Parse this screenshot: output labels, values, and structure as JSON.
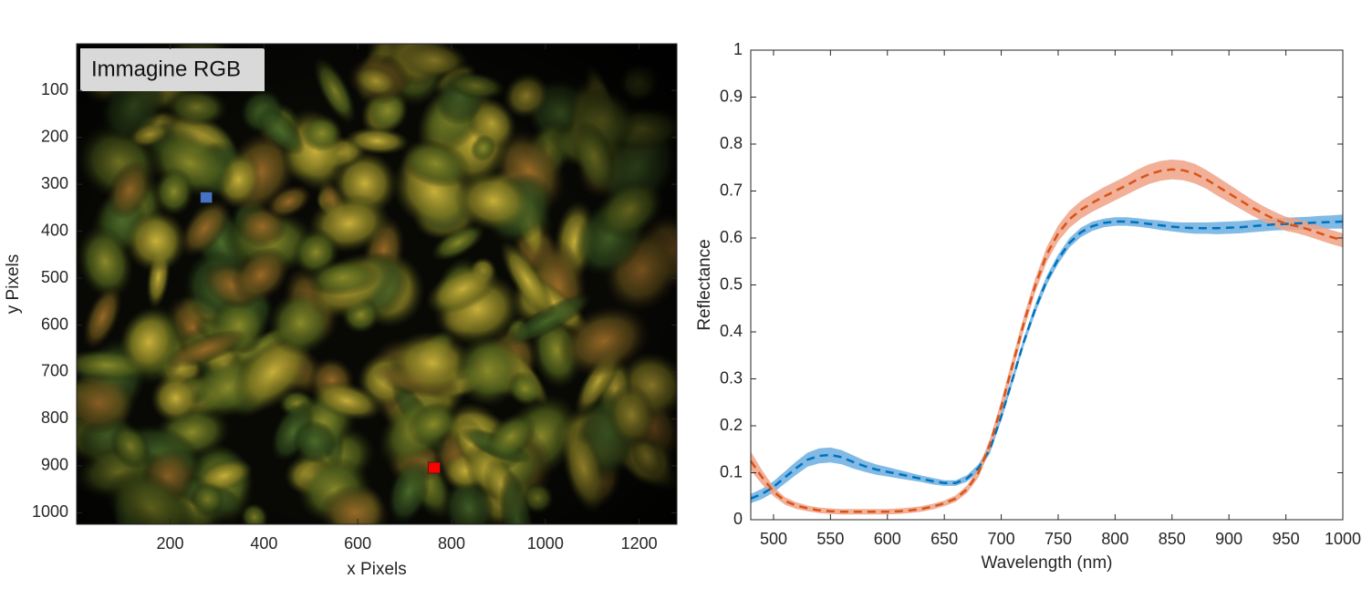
{
  "chart_data": [
    {
      "type": "image",
      "label": "Immagine RGB",
      "x_label": "x Pixels",
      "y_label": "y Pixels",
      "xlim": [
        0.5,
        1280.5
      ],
      "ylim": [
        0.5,
        1024.5
      ],
      "y_reversed": true,
      "xticks": [
        200,
        400,
        600,
        800,
        1000,
        1200
      ],
      "yticks": [
        100,
        200,
        300,
        400,
        500,
        600,
        700,
        800,
        900,
        1000
      ],
      "markers": [
        {
          "x": 276,
          "y": 328,
          "color": "#4472c4"
        },
        {
          "x": 762,
          "y": 904,
          "color": "#ff0000"
        }
      ]
    },
    {
      "type": "line",
      "x_label": "Wavelength (nm)",
      "y_label": "Reflectance",
      "xlim": [
        480,
        1000
      ],
      "ylim": [
        0,
        1
      ],
      "xticks": [
        500,
        550,
        600,
        650,
        700,
        750,
        800,
        850,
        900,
        950,
        1000
      ],
      "yticks": [
        0,
        0.1,
        0.2,
        0.3,
        0.4,
        0.5,
        0.6,
        0.7,
        0.8,
        0.9,
        1
      ],
      "grid": false,
      "dashed": true,
      "x": [
        480,
        490,
        500,
        510,
        520,
        530,
        540,
        550,
        560,
        570,
        580,
        590,
        600,
        610,
        620,
        630,
        640,
        650,
        660,
        670,
        680,
        690,
        700,
        710,
        720,
        730,
        740,
        750,
        760,
        770,
        780,
        790,
        800,
        810,
        820,
        830,
        840,
        850,
        860,
        870,
        880,
        890,
        900,
        910,
        920,
        930,
        940,
        950,
        960,
        970,
        980,
        990,
        1000
      ],
      "series": [
        {
          "color": "#0072bd",
          "band_color": "#6aaee0",
          "values": [
            0.045,
            0.055,
            0.07,
            0.09,
            0.11,
            0.128,
            0.136,
            0.138,
            0.133,
            0.123,
            0.114,
            0.107,
            0.102,
            0.097,
            0.092,
            0.087,
            0.082,
            0.078,
            0.078,
            0.088,
            0.11,
            0.15,
            0.22,
            0.3,
            0.38,
            0.45,
            0.51,
            0.555,
            0.59,
            0.612,
            0.625,
            0.632,
            0.635,
            0.635,
            0.633,
            0.63,
            0.627,
            0.624,
            0.622,
            0.621,
            0.621,
            0.621,
            0.622,
            0.623,
            0.625,
            0.627,
            0.629,
            0.63,
            0.631,
            0.632,
            0.633,
            0.634,
            0.635
          ],
          "band": [
            0.01,
            0.011,
            0.012,
            0.013,
            0.014,
            0.015,
            0.016,
            0.016,
            0.015,
            0.014,
            0.012,
            0.011,
            0.01,
            0.009,
            0.008,
            0.007,
            0.007,
            0.006,
            0.006,
            0.007,
            0.008,
            0.009,
            0.009,
            0.009,
            0.009,
            0.01,
            0.01,
            0.01,
            0.01,
            0.01,
            0.01,
            0.009,
            0.009,
            0.009,
            0.009,
            0.009,
            0.01,
            0.01,
            0.011,
            0.012,
            0.012,
            0.013,
            0.013,
            0.013,
            0.013,
            0.013,
            0.013,
            0.013,
            0.013,
            0.013,
            0.014,
            0.014,
            0.015
          ]
        },
        {
          "color": "#d95319",
          "band_color": "#eea285",
          "values": [
            0.125,
            0.09,
            0.06,
            0.04,
            0.03,
            0.024,
            0.02,
            0.018,
            0.017,
            0.017,
            0.017,
            0.017,
            0.017,
            0.018,
            0.02,
            0.023,
            0.028,
            0.035,
            0.045,
            0.065,
            0.1,
            0.16,
            0.24,
            0.33,
            0.42,
            0.5,
            0.565,
            0.61,
            0.64,
            0.66,
            0.675,
            0.688,
            0.7,
            0.712,
            0.725,
            0.736,
            0.743,
            0.746,
            0.744,
            0.737,
            0.725,
            0.71,
            0.695,
            0.68,
            0.665,
            0.652,
            0.64,
            0.63,
            0.625,
            0.618,
            0.61,
            0.602,
            0.595
          ],
          "band": [
            0.02,
            0.015,
            0.01,
            0.008,
            0.007,
            0.006,
            0.006,
            0.006,
            0.006,
            0.006,
            0.006,
            0.006,
            0.006,
            0.006,
            0.006,
            0.006,
            0.006,
            0.006,
            0.007,
            0.008,
            0.01,
            0.012,
            0.014,
            0.015,
            0.015,
            0.015,
            0.016,
            0.017,
            0.018,
            0.019,
            0.019,
            0.02,
            0.02,
            0.02,
            0.021,
            0.021,
            0.021,
            0.021,
            0.021,
            0.021,
            0.02,
            0.02,
            0.019,
            0.018,
            0.017,
            0.016,
            0.016,
            0.015,
            0.015,
            0.015,
            0.015,
            0.015,
            0.015
          ]
        }
      ]
    }
  ]
}
